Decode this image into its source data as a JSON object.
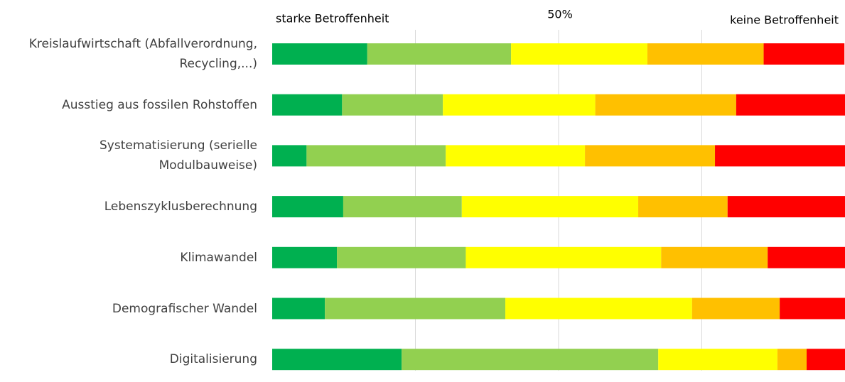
{
  "chart_data": {
    "type": "stacked_barh",
    "annotations": {
      "left": "starke Betroffenheit",
      "center": "50%",
      "right": "keine Betroffenheit"
    },
    "categories": [
      "Kreislaufwirtschaft (Abfallverordnung, Recycling,...)",
      "Ausstieg aus fossilen Rohstoffen",
      "Systematisierung (serielle Modulbauweise)",
      "Lebenszyklusberechnung",
      "Klimawandel",
      "Demografischer Wandel",
      "Digitalisierung"
    ],
    "series": [
      {
        "color": "#00b050",
        "values": [
          16.6,
          12.2,
          6.0,
          12.4,
          11.3,
          9.2,
          22.6
        ]
      },
      {
        "color": "#92d050",
        "values": [
          25.1,
          17.6,
          24.3,
          20.7,
          22.5,
          31.5,
          44.8
        ]
      },
      {
        "color": "#ffff00",
        "values": [
          23.8,
          26.6,
          24.3,
          30.8,
          34.1,
          32.6,
          20.8
        ]
      },
      {
        "color": "#ffc000",
        "values": [
          20.3,
          24.6,
          22.7,
          15.6,
          18.6,
          15.3,
          5.1
        ]
      },
      {
        "color": "#ff0000",
        "values": [
          14.1,
          19.1,
          22.7,
          20.5,
          13.5,
          11.4,
          6.7
        ]
      }
    ],
    "xlim": [
      0,
      100
    ],
    "xticks": [
      25,
      50,
      75
    ],
    "grid": true
  }
}
